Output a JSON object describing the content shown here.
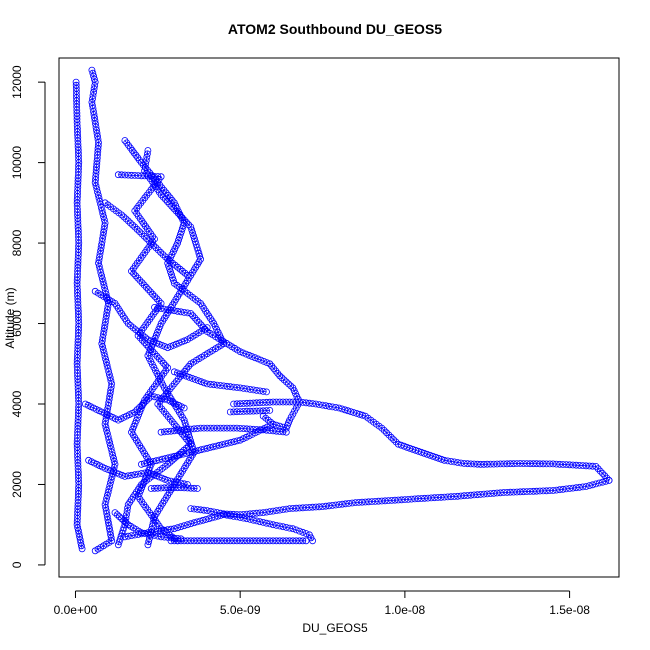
{
  "chart_data": {
    "type": "scatter",
    "title": "ATOM2 Southbound DU_GEOS5",
    "xlabel": "DU_GEOS5",
    "ylabel": "Altitude (m)",
    "xlim": [
      -5e-10,
      1.65e-08
    ],
    "ylim": [
      -300,
      12600
    ],
    "x_ticks": [
      {
        "value": 0,
        "label": "0.0e+00"
      },
      {
        "value": 5e-09,
        "label": "5.0e-09"
      },
      {
        "value": 1e-08,
        "label": "1.0e-08"
      },
      {
        "value": 1.5e-08,
        "label": "1.5e-08"
      }
    ],
    "y_ticks": [
      {
        "value": 0,
        "label": "0"
      },
      {
        "value": 2000,
        "label": "2000"
      },
      {
        "value": 4000,
        "label": "4000"
      },
      {
        "value": 6000,
        "label": "6000"
      },
      {
        "value": 8000,
        "label": "8000"
      },
      {
        "value": 10000,
        "label": "10000"
      },
      {
        "value": 12000,
        "label": "12000"
      }
    ],
    "grid": false,
    "marker": "open-circle",
    "color": "#0000ff",
    "series": [
      {
        "values": [
          [
            2e-11,
            12000
          ],
          [
            5e-11,
            11000
          ],
          [
            1e-10,
            10000
          ],
          [
            5e-11,
            9000
          ],
          [
            1e-10,
            8000
          ],
          [
            5e-11,
            7000
          ],
          [
            1e-10,
            6000
          ],
          [
            5e-11,
            5000
          ],
          [
            1e-10,
            4000
          ],
          [
            5e-11,
            3000
          ],
          [
            1e-10,
            2000
          ],
          [
            5e-11,
            1000
          ],
          [
            2e-10,
            400
          ]
        ]
      },
      {
        "values": [
          [
            5e-10,
            12300
          ],
          [
            6e-10,
            12000
          ],
          [
            5e-10,
            11500
          ],
          [
            7e-10,
            10500
          ],
          [
            6e-10,
            9500
          ],
          [
            9e-10,
            8500
          ],
          [
            7e-10,
            7500
          ],
          [
            1e-09,
            6500
          ],
          [
            8e-10,
            5500
          ],
          [
            1.1e-09,
            4500
          ],
          [
            9e-10,
            3500
          ],
          [
            1.2e-09,
            2500
          ],
          [
            9e-10,
            1500
          ],
          [
            1.1e-09,
            600
          ],
          [
            6e-10,
            350
          ]
        ]
      },
      {
        "values": [
          [
            1.5e-09,
            10550
          ],
          [
            2e-09,
            10000
          ],
          [
            2.5e-09,
            9500
          ],
          [
            3e-09,
            9000
          ],
          [
            3.3e-09,
            8500
          ],
          [
            3.1e-09,
            8000
          ],
          [
            2.8e-09,
            7500
          ],
          [
            3e-09,
            7000
          ],
          [
            3.8e-09,
            6500
          ],
          [
            4.2e-09,
            6000
          ],
          [
            4.5e-09,
            5500
          ],
          [
            3.5e-09,
            5000
          ],
          [
            3e-09,
            4500
          ],
          [
            2.5e-09,
            4000
          ],
          [
            3e-09,
            3500
          ],
          [
            3.5e-09,
            3000
          ],
          [
            2.8e-09,
            2500
          ],
          [
            2e-09,
            2000
          ],
          [
            1.6e-09,
            1500
          ],
          [
            1.5e-09,
            1000
          ],
          [
            1.3e-09,
            500
          ]
        ]
      },
      {
        "values": [
          [
            2.2e-09,
            10300
          ],
          [
            2.1e-09,
            9800
          ],
          [
            2.6e-09,
            9200
          ],
          [
            3.5e-09,
            8400
          ],
          [
            3.8e-09,
            7600
          ],
          [
            3.2e-09,
            6800
          ],
          [
            2.6e-09,
            6000
          ],
          [
            2.2e-09,
            5200
          ],
          [
            2.7e-09,
            4400
          ],
          [
            3.3e-09,
            3600
          ],
          [
            3.6e-09,
            2800
          ],
          [
            3e-09,
            2000
          ],
          [
            2.4e-09,
            1200
          ],
          [
            2.2e-09,
            500
          ]
        ]
      },
      {
        "values": [
          [
            1.3e-09,
            9700
          ],
          [
            2.6e-09,
            9650
          ],
          [
            1.8e-09,
            8800
          ],
          [
            2.4e-09,
            8100
          ],
          [
            1.7e-09,
            7300
          ],
          [
            2.6e-09,
            6500
          ],
          [
            1.9e-09,
            5700
          ],
          [
            2.8e-09,
            4900
          ],
          [
            2.1e-09,
            4100
          ],
          [
            1.7e-09,
            3300
          ],
          [
            2.3e-09,
            2500
          ],
          [
            1.9e-09,
            1700
          ],
          [
            2.6e-09,
            900
          ],
          [
            3.1e-09,
            600
          ]
        ]
      },
      {
        "values": [
          [
            2.4e-09,
            6400
          ],
          [
            3.5e-09,
            6250
          ],
          [
            4e-09,
            5800
          ],
          [
            5e-09,
            5300
          ],
          [
            5.9e-09,
            5000
          ],
          [
            6.2e-09,
            4700
          ],
          [
            6.6e-09,
            4400
          ],
          [
            6.8e-09,
            4050
          ],
          [
            6.5e-09,
            3600
          ],
          [
            6.4e-09,
            3400
          ],
          [
            6e-09,
            3500
          ],
          [
            5.7e-09,
            3700
          ]
        ]
      },
      {
        "values": [
          [
            3e-09,
            4800
          ],
          [
            4e-09,
            4500
          ],
          [
            5e-09,
            4400
          ],
          [
            5.8e-09,
            4300
          ]
        ]
      },
      {
        "values": [
          [
            4.7e-09,
            3800
          ],
          [
            5.2e-09,
            3820
          ],
          [
            5.7e-09,
            3830
          ],
          [
            5.9e-09,
            3840
          ]
        ]
      },
      {
        "values": [
          [
            2.6e-09,
            3300
          ],
          [
            3.8e-09,
            3400
          ],
          [
            4.9e-09,
            3400
          ],
          [
            5.8e-09,
            3350
          ],
          [
            6.4e-09,
            3300
          ]
        ]
      },
      {
        "values": [
          [
            2e-09,
            2500
          ],
          [
            3e-09,
            2700
          ],
          [
            4e-09,
            2900
          ],
          [
            5e-09,
            3100
          ],
          [
            6e-09,
            3500
          ]
        ]
      },
      {
        "values": [
          [
            4.8e-09,
            4000
          ],
          [
            6e-09,
            4050
          ],
          [
            6.8e-09,
            4050
          ],
          [
            7.3e-09,
            4000
          ],
          [
            8e-09,
            3900
          ],
          [
            8.8e-09,
            3700
          ],
          [
            9.3e-09,
            3400
          ],
          [
            9.8e-09,
            3000
          ],
          [
            1.05e-08,
            2800
          ],
          [
            1.12e-08,
            2600
          ],
          [
            1.18e-08,
            2520
          ],
          [
            1.23e-08,
            2500
          ],
          [
            1.35e-08,
            2520
          ],
          [
            1.45e-08,
            2510
          ],
          [
            1.52e-08,
            2480
          ],
          [
            1.58e-08,
            2450
          ],
          [
            1.62e-08,
            2100
          ]
        ]
      },
      {
        "values": [
          [
            1.62e-08,
            2100
          ],
          [
            1.55e-08,
            1950
          ],
          [
            1.45e-08,
            1850
          ],
          [
            1.3e-08,
            1800
          ],
          [
            1.15e-08,
            1700
          ],
          [
            1.05e-08,
            1650
          ],
          [
            9.5e-09,
            1600
          ],
          [
            8.5e-09,
            1550
          ],
          [
            7.5e-09,
            1450
          ],
          [
            6.5e-09,
            1400
          ],
          [
            5.7e-09,
            1300
          ],
          [
            5e-09,
            1250
          ],
          [
            4.5e-09,
            1270
          ],
          [
            4e-09,
            1350
          ],
          [
            3.5e-09,
            1400
          ]
        ]
      },
      {
        "values": [
          [
            7.2e-09,
            600
          ],
          [
            7.1e-09,
            750
          ],
          [
            6.6e-09,
            900
          ],
          [
            6e-09,
            1000
          ],
          [
            5.2e-09,
            1150
          ],
          [
            4.5e-09,
            1250
          ],
          [
            3.6e-09,
            1050
          ],
          [
            3e-09,
            900
          ],
          [
            2.2e-09,
            800
          ],
          [
            1.5e-09,
            700
          ]
        ]
      },
      {
        "values": [
          [
            2.9e-09,
            600
          ],
          [
            3.8e-09,
            600
          ],
          [
            5e-09,
            600
          ],
          [
            6e-09,
            600
          ],
          [
            7e-09,
            600
          ]
        ]
      },
      {
        "values": [
          [
            2.3e-09,
            1900
          ],
          [
            2.8e-09,
            1920
          ],
          [
            3.2e-09,
            1920
          ],
          [
            3.7e-09,
            1900
          ]
        ]
      },
      {
        "values": [
          [
            3e-10,
            4000
          ],
          [
            8e-10,
            3800
          ],
          [
            1.3e-09,
            3600
          ],
          [
            1.8e-09,
            3800
          ],
          [
            2.3e-09,
            4200
          ],
          [
            2.8e-09,
            4100
          ],
          [
            3.3e-09,
            3900
          ]
        ]
      },
      {
        "values": [
          [
            6e-10,
            6800
          ],
          [
            1.2e-09,
            6500
          ],
          [
            1.6e-09,
            6000
          ],
          [
            2.2e-09,
            5600
          ],
          [
            2.8e-09,
            5400
          ],
          [
            3.4e-09,
            5600
          ],
          [
            4e-09,
            5900
          ]
        ]
      },
      {
        "values": [
          [
            9e-10,
            9000
          ],
          [
            1.4e-09,
            8700
          ],
          [
            1.8e-09,
            8400
          ],
          [
            2.3e-09,
            8000
          ],
          [
            2.8e-09,
            7600
          ],
          [
            3.4e-09,
            7200
          ]
        ]
      },
      {
        "values": [
          [
            1.2e-09,
            1300
          ],
          [
            1.6e-09,
            1000
          ],
          [
            2e-09,
            800
          ],
          [
            2.6e-09,
            700
          ],
          [
            3.2e-09,
            650
          ]
        ]
      },
      {
        "values": [
          [
            4e-10,
            2600
          ],
          [
            9e-10,
            2400
          ],
          [
            1.5e-09,
            2200
          ],
          [
            2.2e-09,
            2300
          ],
          [
            2.8e-09,
            2100
          ],
          [
            3.4e-09,
            2000
          ]
        ]
      }
    ]
  }
}
